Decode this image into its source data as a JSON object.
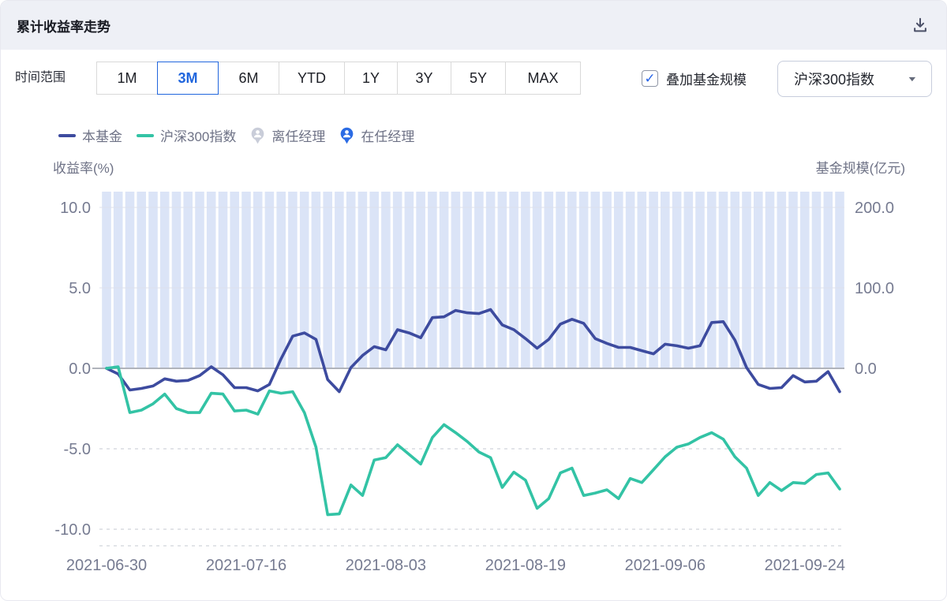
{
  "header": {
    "title": "累计收益率走势",
    "download_icon": "download"
  },
  "toolbar": {
    "time_range_label": "时间范围",
    "ranges": [
      "1M",
      "3M",
      "6M",
      "YTD",
      "1Y",
      "3Y",
      "5Y",
      "MAX"
    ],
    "selected_range": "3M",
    "overlay_checkbox_label": "叠加基金规模",
    "overlay_checked": true,
    "check_icon": "✓",
    "benchmark_select_value": "沪深300指数",
    "caret_icon": "▼"
  },
  "legend": {
    "items": [
      {
        "label": "本基金",
        "type": "line",
        "color": "#3d4b9f"
      },
      {
        "label": "沪深300指数",
        "type": "line",
        "color": "#33c3a5"
      },
      {
        "label": "离任经理",
        "type": "pin",
        "color": "#c9cdd9"
      },
      {
        "label": "在任经理",
        "type": "pin",
        "color": "#2b6be4"
      }
    ]
  },
  "colors": {
    "accent_blue": "#2166dd",
    "fund_line": "#3d4b9f",
    "index_line": "#33c3a5",
    "bar_fill": "#dbe4f7",
    "zero_line": "#b0b3bb",
    "grid_solid": "#dde1ec",
    "grid_dashed": "#d9dbe1",
    "axis_text": "#767b91",
    "header_bg": "#eef0f6"
  },
  "chart_data": {
    "type": "line",
    "title": "累计收益率走势",
    "left_axis": {
      "title": "收益率(%)",
      "ticks": [
        10.0,
        5.0,
        0.0,
        -5.0,
        -10.0
      ],
      "range": [
        -11.1,
        11.0
      ]
    },
    "right_axis": {
      "title": "基金规模(亿元)",
      "ticks": [
        200.0,
        100.0,
        0.0
      ],
      "range": [
        0,
        222
      ]
    },
    "x_tick_labels": [
      "2021-06-30",
      "2021-07-16",
      "2021-08-03",
      "2021-08-19",
      "2021-09-06",
      "2021-09-24"
    ],
    "x_tick_indices": [
      0,
      12,
      24,
      36,
      48,
      60
    ],
    "x_dates": [
      "2021-06-30",
      "2021-07-01",
      "2021-07-02",
      "2021-07-05",
      "2021-07-06",
      "2021-07-07",
      "2021-07-08",
      "2021-07-09",
      "2021-07-12",
      "2021-07-13",
      "2021-07-14",
      "2021-07-15",
      "2021-07-16",
      "2021-07-19",
      "2021-07-20",
      "2021-07-21",
      "2021-07-22",
      "2021-07-23",
      "2021-07-26",
      "2021-07-27",
      "2021-07-28",
      "2021-07-29",
      "2021-07-30",
      "2021-08-02",
      "2021-08-03",
      "2021-08-04",
      "2021-08-05",
      "2021-08-06",
      "2021-08-09",
      "2021-08-10",
      "2021-08-11",
      "2021-08-12",
      "2021-08-13",
      "2021-08-16",
      "2021-08-17",
      "2021-08-18",
      "2021-08-19",
      "2021-08-20",
      "2021-08-23",
      "2021-08-24",
      "2021-08-25",
      "2021-08-26",
      "2021-08-27",
      "2021-08-30",
      "2021-08-31",
      "2021-09-01",
      "2021-09-02",
      "2021-09-03",
      "2021-09-06",
      "2021-09-07",
      "2021-09-08",
      "2021-09-09",
      "2021-09-10",
      "2021-09-13",
      "2021-09-14",
      "2021-09-15",
      "2021-09-16",
      "2021-09-17",
      "2021-09-22",
      "2021-09-23",
      "2021-09-24",
      "2021-09-27",
      "2021-09-28",
      "2021-09-29"
    ],
    "series": [
      {
        "name": "本基金",
        "color": "#3d4b9f",
        "values": [
          0.0,
          -0.35,
          -1.35,
          -1.25,
          -1.1,
          -0.65,
          -0.8,
          -0.75,
          -0.45,
          0.1,
          -0.4,
          -1.2,
          -1.2,
          -1.4,
          -1.0,
          0.6,
          2.0,
          2.2,
          1.8,
          -0.7,
          -1.45,
          0.05,
          0.8,
          1.35,
          1.15,
          2.4,
          2.2,
          1.9,
          3.15,
          3.2,
          3.6,
          3.45,
          3.4,
          3.65,
          2.7,
          2.4,
          1.85,
          1.25,
          1.8,
          2.75,
          3.05,
          2.8,
          1.85,
          1.55,
          1.3,
          1.3,
          1.1,
          0.9,
          1.5,
          1.4,
          1.25,
          1.4,
          2.85,
          2.9,
          1.75,
          0.05,
          -1.0,
          -1.25,
          -1.2,
          -0.45,
          -0.85,
          -0.8,
          -0.2,
          -1.45
        ]
      },
      {
        "name": "沪深300指数",
        "color": "#33c3a5",
        "values": [
          0.0,
          0.1,
          -2.75,
          -2.6,
          -2.2,
          -1.6,
          -2.5,
          -2.75,
          -2.75,
          -1.55,
          -1.6,
          -2.65,
          -2.6,
          -2.85,
          -1.4,
          -1.55,
          -1.45,
          -2.75,
          -4.9,
          -9.1,
          -9.05,
          -7.25,
          -7.9,
          -5.7,
          -5.55,
          -4.75,
          -5.35,
          -5.95,
          -4.3,
          -3.5,
          -4.0,
          -4.55,
          -5.2,
          -5.55,
          -7.4,
          -6.45,
          -6.95,
          -8.7,
          -8.1,
          -6.5,
          -6.2,
          -7.9,
          -7.75,
          -7.55,
          -8.1,
          -6.85,
          -7.1,
          -6.3,
          -5.5,
          -4.9,
          -4.7,
          -4.3,
          -4.0,
          -4.4,
          -5.5,
          -6.2,
          -7.9,
          -7.1,
          -7.6,
          -7.1,
          -7.15,
          -6.6,
          -6.5,
          -7.5
        ]
      }
    ],
    "bars": {
      "name": "基金规模",
      "color": "#dbe4f7",
      "note": "uniform full-height background bars; fund size exceeds right-axis 200 max (clipped at plot top)"
    },
    "grid": {
      "positive_lines": "solid",
      "negative_lines": "dashed",
      "zero_line": true,
      "legend_position": "top-left"
    }
  }
}
